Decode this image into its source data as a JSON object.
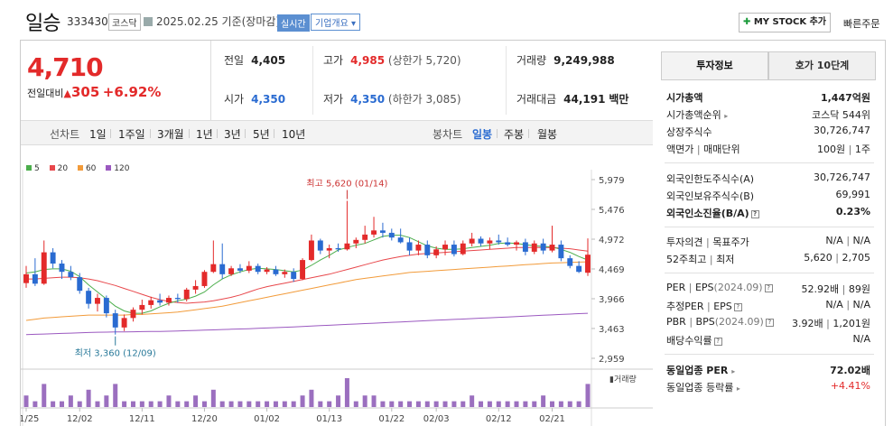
{
  "header": {
    "name": "일승",
    "code": "333430",
    "market": "코스닥",
    "date": "2025.02.25",
    "date_suffix": "기준(장마감)",
    "realtime": "실시간",
    "company_info": "기업개요 ▾",
    "mystock": "MY STOCK 추가",
    "quick_order": "빠른주문"
  },
  "price": {
    "current": "4,710",
    "change_label": "전일대비",
    "change": "305",
    "rate": "+6.92%"
  },
  "stats": {
    "prev_close_label": "전일",
    "prev_close": "4,405",
    "high_label": "고가",
    "high": "4,985",
    "upper_limit": "(상한가 5,720)",
    "volume_label": "거래량",
    "volume": "9,249,988",
    "open_label": "시가",
    "open": "4,350",
    "low_label": "저가",
    "low": "4,350",
    "lower_limit": "(하한가 3,085)",
    "amount_label": "거래대금",
    "amount": "44,191",
    "amount_unit": "백만"
  },
  "toolbar": {
    "line_label": "선차트",
    "line_periods": [
      "1일",
      "1주일",
      "3개월",
      "1년",
      "3년",
      "5년",
      "10년"
    ],
    "candle_label": "봉차트",
    "candle_periods": [
      "일봉",
      "주봉",
      "월봉"
    ],
    "active_candle": "일봉"
  },
  "chart_data": {
    "type": "candlestick",
    "legend": [
      {
        "name": "5",
        "color": "#4cae4c"
      },
      {
        "name": "20",
        "color": "#e8474b"
      },
      {
        "name": "60",
        "color": "#f29b3a"
      },
      {
        "name": "120",
        "color": "#9b59c0"
      }
    ],
    "y_ticks": [
      "5,979",
      "5,476",
      "4,972",
      "4,469",
      "3,966",
      "3,463",
      "2,959"
    ],
    "ylim": [
      2959,
      5979
    ],
    "x_labels": [
      "11/25",
      "12/02",
      "12/11",
      "12/20",
      "01/02",
      "01/13",
      "01/22",
      "02/03",
      "02/12",
      "02/21"
    ],
    "max_annotation": "최고 5,620 (01/14)",
    "min_annotation": "최저 3,360 (12/09)",
    "volume_label": "거래량",
    "ohlc": [
      [
        4230,
        4520,
        4150,
        4380
      ],
      [
        4380,
        4650,
        4180,
        4220
      ],
      [
        4220,
        4950,
        4200,
        4750
      ],
      [
        4750,
        4820,
        4480,
        4560
      ],
      [
        4560,
        4620,
        4300,
        4420
      ],
      [
        4420,
        4520,
        4280,
        4330
      ],
      [
        4330,
        4400,
        4050,
        4100
      ],
      [
        4100,
        4150,
        3800,
        3880
      ],
      [
        3880,
        4050,
        3750,
        3980
      ],
      [
        3980,
        4020,
        3650,
        3720
      ],
      [
        3720,
        3780,
        3360,
        3480
      ],
      [
        3480,
        3700,
        3420,
        3640
      ],
      [
        3640,
        3820,
        3580,
        3780
      ],
      [
        3780,
        3950,
        3700,
        3860
      ],
      [
        3860,
        4000,
        3800,
        3940
      ],
      [
        3940,
        4050,
        3850,
        3900
      ],
      [
        3900,
        4020,
        3850,
        3980
      ],
      [
        3980,
        4050,
        3900,
        3960
      ],
      [
        3960,
        4150,
        3920,
        4120
      ],
      [
        4120,
        4280,
        4050,
        4180
      ],
      [
        4180,
        4450,
        4150,
        4420
      ],
      [
        4420,
        4950,
        4400,
        4550
      ],
      [
        4550,
        4900,
        4300,
        4380
      ],
      [
        4380,
        4520,
        4350,
        4480
      ],
      [
        4480,
        4550,
        4400,
        4440
      ],
      [
        4440,
        4600,
        4400,
        4520
      ],
      [
        4520,
        4560,
        4380,
        4420
      ],
      [
        4420,
        4500,
        4380,
        4460
      ],
      [
        4460,
        4520,
        4350,
        4380
      ],
      [
        4380,
        4460,
        4320,
        4420
      ],
      [
        4420,
        4480,
        4250,
        4300
      ],
      [
        4300,
        4650,
        4280,
        4620
      ],
      [
        4620,
        5050,
        4600,
        4950
      ],
      [
        4950,
        4980,
        4720,
        4780
      ],
      [
        4780,
        4880,
        4650,
        4820
      ],
      [
        4820,
        4900,
        4760,
        4800
      ],
      [
        4800,
        5620,
        4780,
        4900
      ],
      [
        4900,
        5000,
        4820,
        4960
      ],
      [
        4960,
        5200,
        4900,
        5050
      ],
      [
        5050,
        5350,
        5000,
        5120
      ],
      [
        5120,
        5250,
        5000,
        5080
      ],
      [
        5080,
        5150,
        4950,
        5000
      ],
      [
        5000,
        5150,
        4900,
        4920
      ],
      [
        4920,
        5000,
        4700,
        4780
      ],
      [
        4780,
        4950,
        4700,
        4880
      ],
      [
        4880,
        4950,
        4650,
        4700
      ],
      [
        4700,
        4850,
        4650,
        4800
      ],
      [
        4800,
        4950,
        4700,
        4880
      ],
      [
        4880,
        4950,
        4680,
        4720
      ],
      [
        4720,
        4950,
        4700,
        4900
      ],
      [
        4900,
        5080,
        4850,
        4980
      ],
      [
        4980,
        5020,
        4850,
        4900
      ],
      [
        4900,
        5000,
        4800,
        4950
      ],
      [
        4950,
        5050,
        4880,
        4920
      ],
      [
        4920,
        5000,
        4850,
        4880
      ],
      [
        4880,
        4950,
        4780,
        4920
      ],
      [
        4920,
        4980,
        4700,
        4760
      ],
      [
        4760,
        4950,
        4720,
        4900
      ],
      [
        4900,
        4980,
        4720,
        4780
      ],
      [
        4780,
        5200,
        4750,
        4880
      ],
      [
        4880,
        4950,
        4600,
        4650
      ],
      [
        4650,
        4700,
        4480,
        4520
      ],
      [
        4520,
        4600,
        4400,
        4420
      ],
      [
        4405,
        4985,
        4350,
        4710
      ]
    ],
    "ma5": [
      4400,
      4420,
      4460,
      4470,
      4470,
      4430,
      4340,
      4200,
      4080,
      3960,
      3840,
      3760,
      3720,
      3720,
      3760,
      3830,
      3890,
      3930,
      3960,
      4010,
      4080,
      4200,
      4300,
      4370,
      4420,
      4460,
      4480,
      4470,
      4460,
      4440,
      4420,
      4450,
      4530,
      4620,
      4700,
      4790,
      4830,
      4870,
      4900,
      4960,
      5020,
      5040,
      5040,
      5000,
      4930,
      4860,
      4820,
      4800,
      4800,
      4810,
      4830,
      4850,
      4870,
      4900,
      4910,
      4900,
      4880,
      4860,
      4850,
      4840,
      4800,
      4750,
      4680,
      4620
    ],
    "ma20": [
      4300,
      4300,
      4310,
      4320,
      4330,
      4330,
      4320,
      4300,
      4270,
      4230,
      4190,
      4140,
      4090,
      4040,
      3990,
      3950,
      3920,
      3900,
      3890,
      3900,
      3910,
      3930,
      3960,
      3990,
      4030,
      4080,
      4130,
      4170,
      4200,
      4230,
      4260,
      4290,
      4320,
      4350,
      4380,
      4420,
      4460,
      4500,
      4540,
      4580,
      4620,
      4650,
      4680,
      4700,
      4720,
      4730,
      4740,
      4750,
      4760,
      4770,
      4780,
      4790,
      4800,
      4810,
      4820,
      4830,
      4830,
      4830,
      4830,
      4830,
      4820,
      4810,
      4790,
      4770
    ],
    "ma60": [
      3600,
      3620,
      3640,
      3650,
      3660,
      3670,
      3680,
      3690,
      3690,
      3690,
      3690,
      3690,
      3700,
      3700,
      3710,
      3720,
      3730,
      3740,
      3760,
      3780,
      3800,
      3820,
      3840,
      3870,
      3900,
      3930,
      3960,
      3990,
      4020,
      4050,
      4080,
      4110,
      4140,
      4170,
      4200,
      4230,
      4260,
      4290,
      4310,
      4330,
      4350,
      4370,
      4390,
      4410,
      4420,
      4430,
      4440,
      4450,
      4460,
      4470,
      4480,
      4490,
      4500,
      4510,
      4520,
      4530,
      4540,
      4550,
      4560,
      4570,
      4575,
      4580,
      4585,
      4590
    ],
    "ma120": [
      3360,
      3365,
      3370,
      3375,
      3380,
      3385,
      3390,
      3395,
      3400,
      3402,
      3404,
      3406,
      3408,
      3410,
      3412,
      3414,
      3416,
      3420,
      3425,
      3430,
      3435,
      3440,
      3445,
      3450,
      3455,
      3460,
      3466,
      3472,
      3478,
      3484,
      3490,
      3497,
      3504,
      3511,
      3518,
      3525,
      3532,
      3539,
      3546,
      3553,
      3560,
      3567,
      3574,
      3581,
      3588,
      3595,
      3602,
      3609,
      3616,
      3623,
      3630,
      3637,
      3644,
      3651,
      3658,
      3665,
      3672,
      3679,
      3686,
      3693,
      3700,
      3707,
      3714,
      3720
    ],
    "volume": [
      2,
      1,
      4,
      1,
      1,
      2,
      1,
      3,
      1,
      2,
      4,
      1,
      1,
      1,
      1,
      1,
      2,
      1,
      1,
      2,
      1,
      3,
      1,
      1,
      1,
      1,
      1,
      1,
      1,
      1,
      1,
      2,
      3,
      1,
      1,
      2,
      5,
      1,
      2,
      2,
      1,
      1,
      1,
      1,
      1,
      1,
      1,
      1,
      1,
      1,
      2,
      1,
      1,
      1,
      1,
      1,
      1,
      1,
      2,
      1,
      1,
      1,
      1,
      4
    ]
  },
  "tabs": [
    "투자정보",
    "호가 10단계"
  ],
  "info": {
    "market_cap_label": "시가총액",
    "market_cap": "1,447억원",
    "market_cap_rank_label": "시가총액순위",
    "market_cap_rank": "코스닥 544위",
    "shares_label": "상장주식수",
    "shares": "30,726,747",
    "face_label": "액면가",
    "unit_label": "매매단위",
    "face_value": "100원",
    "unit_value": "1주",
    "foreign_limit_label": "외국인한도주식수(A)",
    "foreign_limit": "30,726,747",
    "foreign_hold_label": "외국인보유주식수(B)",
    "foreign_hold": "69,991",
    "foreign_ratio_label": "외국인소진율(B/A)",
    "foreign_ratio": "0.23%",
    "opinion_label": "투자의견",
    "target_label": "목표주가",
    "opinion": "N/A",
    "target": "N/A",
    "high52_label": "52주최고",
    "low52_label": "최저",
    "high52": "5,620",
    "low52": "2,705",
    "per_label": "PER",
    "eps_label": "EPS",
    "per_year": "(2024.09)",
    "per": "52.92배",
    "eps": "89원",
    "est_per_label": "추정PER",
    "est_eps_label": "EPS",
    "est_per": "N/A",
    "est_eps": "N/A",
    "pbr_label": "PBR",
    "bps_label": "BPS",
    "pbr_year": "(2024.09)",
    "pbr": "3.92배",
    "bps": "1,201원",
    "dividend_label": "배당수익률",
    "dividend": "N/A",
    "sector_per_label": "동일업종 PER",
    "sector_per": "72.02배",
    "sector_rate_label": "동일업종 등락률",
    "sector_rate": "+4.41%"
  }
}
